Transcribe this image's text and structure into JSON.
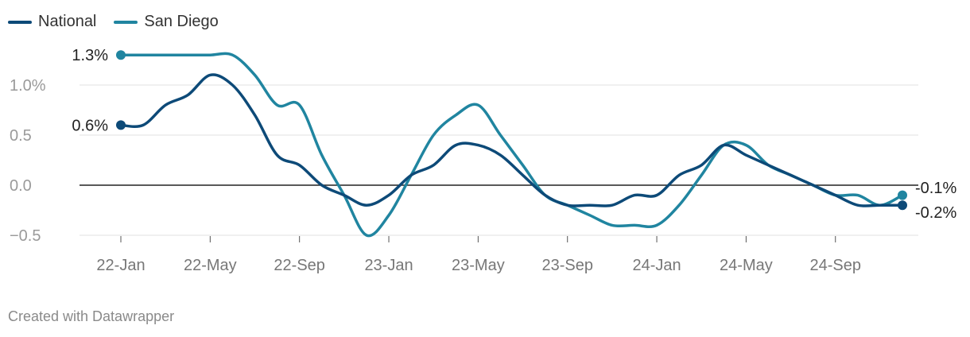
{
  "footer": {
    "credit": "Created with Datawrapper"
  },
  "colors": {
    "national": "#0d4a78",
    "san_diego": "#2085a0",
    "grid": "#e2e2e2",
    "zero_line": "#222222",
    "tick_text": "#9a9a9a",
    "label_text": "#222222"
  },
  "chart_data": {
    "type": "line",
    "title": "",
    "xlabel": "",
    "ylabel": "",
    "ylim": [
      -0.5,
      1.3
    ],
    "y_ticks": [
      -0.5,
      0.0,
      0.5,
      1.0
    ],
    "y_tick_labels": [
      "−0.5",
      "0.0",
      "0.5",
      "1.0%"
    ],
    "x_ticks": [
      "2022-01",
      "2022-05",
      "2022-09",
      "2023-01",
      "2023-05",
      "2023-09",
      "2024-01",
      "2024-05",
      "2024-09"
    ],
    "x_tick_labels": [
      "22-Jan",
      "22-May",
      "22-Sep",
      "23-Jan",
      "23-May",
      "23-Sep",
      "24-Jan",
      "24-May",
      "24-Sep"
    ],
    "grid": true,
    "legend_position": "top-left",
    "x": [
      "2022-01",
      "2022-02",
      "2022-03",
      "2022-04",
      "2022-05",
      "2022-06",
      "2022-07",
      "2022-08",
      "2022-09",
      "2022-10",
      "2022-11",
      "2022-12",
      "2023-01",
      "2023-02",
      "2023-03",
      "2023-04",
      "2023-05",
      "2023-06",
      "2023-07",
      "2023-08",
      "2023-09",
      "2023-10",
      "2023-11",
      "2023-12",
      "2024-01",
      "2024-02",
      "2024-03",
      "2024-04",
      "2024-05",
      "2024-06",
      "2024-07",
      "2024-08",
      "2024-09",
      "2024-10",
      "2024-11",
      "2024-12"
    ],
    "series": [
      {
        "name": "National",
        "color_key": "national",
        "values": [
          0.6,
          0.6,
          0.8,
          0.9,
          1.1,
          1.0,
          0.7,
          0.3,
          0.2,
          0.0,
          -0.1,
          -0.2,
          -0.1,
          0.1,
          0.2,
          0.4,
          0.4,
          0.3,
          0.1,
          -0.1,
          -0.2,
          -0.2,
          -0.2,
          -0.1,
          -0.1,
          0.1,
          0.2,
          0.4,
          0.3,
          0.2,
          0.1,
          0.0,
          -0.1,
          -0.2,
          -0.2,
          -0.2
        ],
        "start_label": "0.6%",
        "end_label": "-0.2%"
      },
      {
        "name": "San Diego",
        "color_key": "san_diego",
        "values": [
          1.3,
          1.3,
          1.3,
          1.3,
          1.3,
          1.3,
          1.1,
          0.8,
          0.8,
          0.3,
          -0.1,
          -0.5,
          -0.3,
          0.1,
          0.5,
          0.7,
          0.8,
          0.5,
          0.2,
          -0.1,
          -0.2,
          -0.3,
          -0.4,
          -0.4,
          -0.4,
          -0.2,
          0.1,
          0.4,
          0.4,
          0.2,
          0.1,
          0.0,
          -0.1,
          -0.1,
          -0.2,
          -0.1
        ],
        "start_label": "1.3%",
        "end_label": "-0.1%"
      }
    ]
  }
}
